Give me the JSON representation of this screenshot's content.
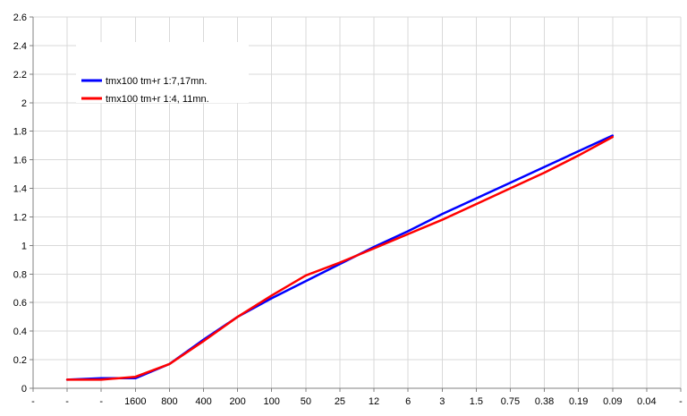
{
  "chart_data": {
    "type": "line",
    "title": "",
    "xlabel": "",
    "ylabel": "",
    "categories": [
      "-",
      "-",
      "-",
      "1600",
      "800",
      "400",
      "200",
      "100",
      "50",
      "25",
      "12",
      "6",
      "3",
      "1.5",
      "0.75",
      "0.38",
      "0.19",
      "0.09",
      "0.04",
      "-"
    ],
    "ylim": [
      0,
      2.6
    ],
    "yticks": [
      0,
      0.2,
      0.4,
      0.6,
      0.8,
      1,
      1.2,
      1.4,
      1.6,
      1.8,
      2,
      2.2,
      2.4,
      2.6
    ],
    "grid": true,
    "legend_position": "top-left",
    "series": [
      {
        "name": "tmx100 tm+r 1:7,17mn.",
        "color": "#0000ff",
        "x": [
          1,
          2,
          3,
          4,
          5,
          6,
          7,
          8,
          9,
          10,
          11,
          12,
          13,
          14,
          15,
          16,
          17
        ],
        "values": [
          0.06,
          0.07,
          0.07,
          0.17,
          0.34,
          0.5,
          0.63,
          0.75,
          0.87,
          0.99,
          1.1,
          1.22,
          1.33,
          1.44,
          1.55,
          1.66,
          1.77
        ]
      },
      {
        "name": "tmx100 tm+r 1:4, 11mn.",
        "color": "#ff0000",
        "x": [
          1,
          2,
          3,
          4,
          5,
          6,
          7,
          8,
          9,
          10,
          11,
          12,
          13,
          14,
          15,
          16,
          17
        ],
        "values": [
          0.06,
          0.06,
          0.08,
          0.17,
          0.33,
          0.5,
          0.65,
          0.79,
          0.88,
          0.98,
          1.08,
          1.18,
          1.29,
          1.4,
          1.51,
          1.63,
          1.76
        ]
      }
    ]
  }
}
